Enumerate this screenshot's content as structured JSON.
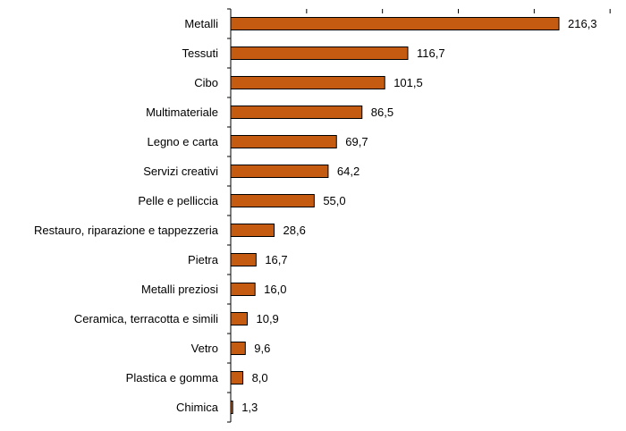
{
  "chart_data": {
    "type": "bar",
    "orientation": "horizontal",
    "title": "",
    "xlabel": "",
    "ylabel": "",
    "categories": [
      "Metalli",
      "Tessuti",
      "Cibo",
      "Multimateriale",
      "Legno e carta",
      "Servizi creativi",
      "Pelle e pelliccia",
      "Restauro, riparazione e tappezzeria",
      "Pietra",
      "Metalli preziosi",
      "Ceramica, terracotta e simili",
      "Vetro",
      "Plastica e gomma",
      "Chimica"
    ],
    "values": [
      216.3,
      116.7,
      101.5,
      86.5,
      69.7,
      64.2,
      55.0,
      28.6,
      16.7,
      16.0,
      10.9,
      9.6,
      8.0,
      1.3
    ],
    "value_labels": [
      "216,3",
      "116,7",
      "101,5",
      "86,5",
      "69,7",
      "64,2",
      "55,0",
      "28,6",
      "16,7",
      "16,0",
      "10,9",
      "9,6",
      "8,0",
      "1,3"
    ],
    "xlim": [
      0,
      250
    ],
    "x_ticks": [
      0,
      50,
      100,
      150,
      200,
      250
    ],
    "x_tick_labels_shown": false,
    "grid": false,
    "legend": "none",
    "bar_color": "#C55A11",
    "bar_edge_color": "#000000"
  }
}
